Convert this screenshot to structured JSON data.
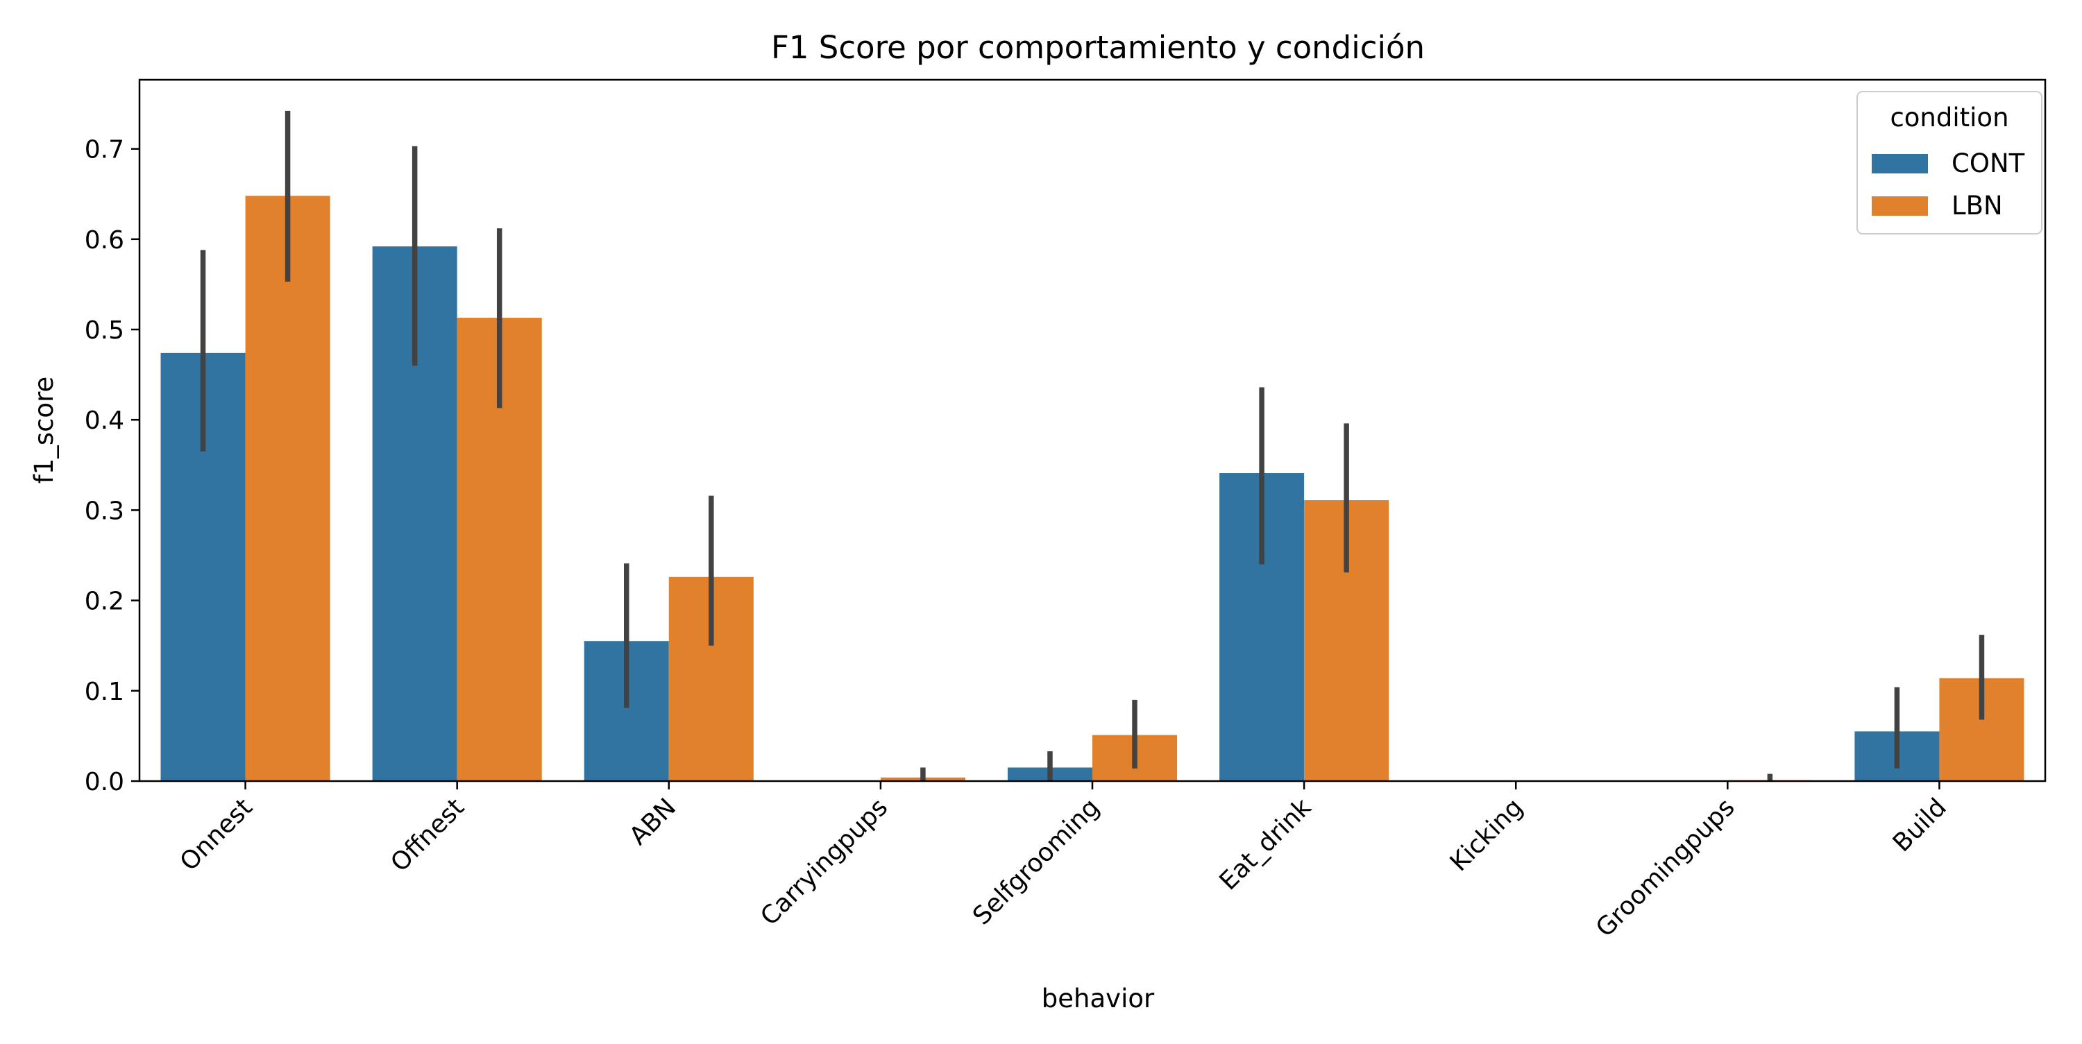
{
  "chart_data": {
    "type": "bar",
    "title": "F1 Score por comportamiento y condición",
    "xlabel": "behavior",
    "ylabel": "f1_score",
    "categories": [
      "Onnest",
      "Offnest",
      "ABN",
      "Carryingpups",
      "Selfgrooming",
      "Eat_drink",
      "Kicking",
      "Groomingpups",
      "Build"
    ],
    "series": [
      {
        "name": "CONT",
        "color": "#3274a1",
        "values": [
          0.474,
          0.592,
          0.155,
          0.0,
          0.015,
          0.341,
          0.0,
          0.0,
          0.055
        ],
        "ci_low": [
          0.365,
          0.46,
          0.081,
          0.0,
          0.0,
          0.24,
          0.0,
          0.0,
          0.014
        ],
        "ci_high": [
          0.588,
          0.703,
          0.241,
          0.0,
          0.033,
          0.436,
          0.0,
          0.0,
          0.104
        ]
      },
      {
        "name": "LBN",
        "color": "#e1812c",
        "values": [
          0.648,
          0.513,
          0.226,
          0.004,
          0.051,
          0.311,
          0.0,
          0.001,
          0.114
        ],
        "ci_low": [
          0.553,
          0.413,
          0.15,
          0.0,
          0.014,
          0.231,
          0.0,
          0.0,
          0.068
        ],
        "ci_high": [
          0.742,
          0.612,
          0.316,
          0.015,
          0.09,
          0.396,
          0.0,
          0.008,
          0.162
        ]
      }
    ],
    "ylim": [
      0.0,
      0.7765
    ],
    "yticks": [
      0.0,
      0.1,
      0.2,
      0.3,
      0.4,
      0.5,
      0.6,
      0.7
    ],
    "ytick_labels": [
      "0.0",
      "0.1",
      "0.2",
      "0.3",
      "0.4",
      "0.5",
      "0.6",
      "0.7"
    ],
    "errorbar_color": "#424242",
    "grid": false,
    "legend": {
      "title": "condition",
      "placement": "top-right",
      "entries": [
        "CONT",
        "LBN"
      ]
    },
    "xtick_rotation_deg": 45
  }
}
